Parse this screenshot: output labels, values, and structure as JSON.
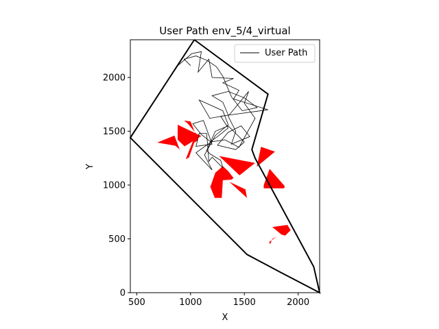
{
  "chart_data": {
    "type": "line",
    "title": "User Path env_5/4_virtual",
    "xlabel": "X",
    "ylabel": "Y",
    "xlim": [
      440,
      2200
    ],
    "ylim": [
      0,
      2350
    ],
    "xticks": [
      500,
      1000,
      1500,
      2000
    ],
    "yticks": [
      0,
      500,
      1000,
      1500,
      2000
    ],
    "legend": {
      "placement": "top-right",
      "entries": [
        "User Path"
      ]
    },
    "grid": false,
    "colors": {
      "path": "#000000",
      "boundary": "#000000",
      "obstacle": "#ff0000"
    },
    "boundary": [
      [
        1035,
        2350
      ],
      [
        1720,
        1845
      ],
      [
        1570,
        1330
      ],
      [
        1600,
        1250
      ],
      [
        2145,
        240
      ],
      [
        2200,
        0
      ],
      [
        1845,
        185
      ],
      [
        1525,
        355
      ],
      [
        440,
        1440
      ],
      [
        1035,
        2350
      ]
    ],
    "obstacles": [
      [
        [
          690,
          1395
        ],
        [
          850,
          1460
        ],
        [
          900,
          1330
        ],
        [
          860,
          1365
        ]
      ],
      [
        [
          880,
          1560
        ],
        [
          1100,
          1455
        ],
        [
          945,
          1360
        ],
        [
          880,
          1420
        ]
      ],
      [
        [
          1030,
          1490
        ],
        [
          925,
          1525
        ],
        [
          905,
          1545
        ],
        [
          945,
          1500
        ]
      ],
      [
        [
          940,
          1600
        ],
        [
          975,
          1570
        ],
        [
          1050,
          1480
        ],
        [
          955,
          1240
        ],
        [
          985,
          1255
        ],
        [
          1035,
          1395
        ],
        [
          1070,
          1415
        ],
        [
          1000,
          1590
        ]
      ],
      [
        [
          1185,
          985
        ],
        [
          1230,
          1115
        ],
        [
          1300,
          1175
        ],
        [
          1350,
          1130
        ],
        [
          1400,
          1065
        ],
        [
          1380,
          1050
        ],
        [
          1300,
          1045
        ],
        [
          1290,
          880
        ],
        [
          1225,
          880
        ],
        [
          1175,
          1005
        ]
      ],
      [
        [
          1360,
          1030
        ],
        [
          1525,
          880
        ],
        [
          1510,
          960
        ]
      ],
      [
        [
          1265,
          1270
        ],
        [
          1455,
          1090
        ],
        [
          1600,
          1205
        ]
      ],
      [
        [
          1615,
          1170
        ],
        [
          1655,
          1355
        ],
        [
          1785,
          1310
        ]
      ],
      [
        [
          1680,
          1000
        ],
        [
          1735,
          1150
        ],
        [
          1875,
          990
        ],
        [
          1870,
          970
        ],
        [
          1680,
          970
        ]
      ],
      [
        [
          1760,
          610
        ],
        [
          1900,
          630
        ],
        [
          1930,
          580
        ],
        [
          1880,
          530
        ],
        [
          1845,
          540
        ],
        [
          1785,
          590
        ]
      ],
      [
        [
          1740,
          450
        ],
        [
          1760,
          500
        ],
        [
          1800,
          520
        ],
        [
          1730,
          470
        ]
      ]
    ],
    "series": [
      {
        "name": "User Path",
        "points": [
          [
            1035,
            2350
          ],
          [
            870,
            2100
          ],
          [
            1010,
            2220
          ],
          [
            1100,
            2240
          ],
          [
            1070,
            2050
          ],
          [
            1170,
            2170
          ],
          [
            1200,
            2000
          ],
          [
            1400,
            1990
          ],
          [
            1300,
            1950
          ],
          [
            1450,
            1880
          ],
          [
            1400,
            1800
          ],
          [
            1720,
            1700
          ],
          [
            1280,
            1640
          ],
          [
            1350,
            1530
          ],
          [
            1250,
            1450
          ],
          [
            1180,
            1400
          ],
          [
            1320,
            1420
          ],
          [
            1450,
            1350
          ],
          [
            1600,
            1620
          ],
          [
            1500,
            1760
          ],
          [
            1540,
            1870
          ],
          [
            1350,
            1640
          ],
          [
            1420,
            1500
          ],
          [
            1380,
            1380
          ],
          [
            1550,
            1450
          ],
          [
            1470,
            1550
          ],
          [
            1350,
            1490
          ],
          [
            1250,
            1370
          ],
          [
            1420,
            1330
          ],
          [
            1500,
            1400
          ],
          [
            1350,
            1550
          ],
          [
            1230,
            1500
          ],
          [
            1150,
            1320
          ],
          [
            1180,
            1290
          ],
          [
            1280,
            1230
          ],
          [
            1300,
            1160
          ],
          [
            1200,
            1260
          ],
          [
            1170,
            1220
          ],
          [
            1150,
            1480
          ],
          [
            1080,
            1480
          ],
          [
            1050,
            1360
          ],
          [
            1200,
            1380
          ],
          [
            1120,
            1600
          ],
          [
            1020,
            1570
          ],
          [
            1100,
            1470
          ],
          [
            1190,
            1400
          ],
          [
            1050,
            1300
          ],
          [
            1200,
            1140
          ],
          [
            1130,
            1280
          ],
          [
            1230,
            1460
          ],
          [
            1350,
            1560
          ],
          [
            1300,
            1690
          ],
          [
            1080,
            1790
          ],
          [
            1180,
            1620
          ],
          [
            1350,
            1650
          ],
          [
            1300,
            1770
          ],
          [
            1200,
            1830
          ],
          [
            1350,
            1870
          ],
          [
            1500,
            1810
          ],
          [
            1620,
            1720
          ],
          [
            1480,
            1690
          ],
          [
            1380,
            1820
          ],
          [
            1300,
            2010
          ],
          [
            1240,
            2100
          ],
          [
            1150,
            2160
          ],
          [
            1050,
            2200
          ],
          [
            940,
            2170
          ],
          [
            1000,
            2110
          ]
        ]
      }
    ]
  }
}
